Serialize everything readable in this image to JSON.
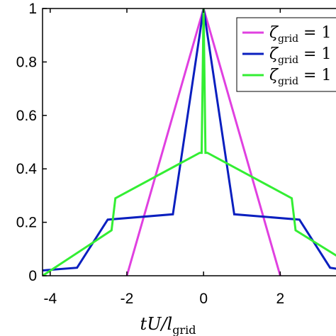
{
  "chart_data": {
    "type": "line",
    "xlabel": {
      "main": "tU/l",
      "sub": "grid"
    },
    "ylabel": "",
    "xlim": [
      -4.2,
      3.75
    ],
    "ylim": [
      0,
      1
    ],
    "xticks": [
      -4,
      -2,
      0,
      2
    ],
    "xtick_labels": [
      "-4",
      "-2",
      "0",
      "2"
    ],
    "yticks": [
      0,
      0.2,
      0.4,
      0.6,
      0.8,
      1
    ],
    "ytick_labels": [
      "0",
      "0.2",
      "0.4",
      "0.6",
      "0.8",
      "1"
    ],
    "grid": false,
    "legend_position": "top-right",
    "series": [
      {
        "name": "ζgrid = 1",
        "name_parts": {
          "symbol": "ζ",
          "sub": "grid",
          "rest": " = 1"
        },
        "color": "#e040e0",
        "x": [
          -2,
          0,
          2
        ],
        "y": [
          0,
          1,
          0
        ]
      },
      {
        "name": "ζgrid = 1",
        "name_parts": {
          "symbol": "ζ",
          "sub": "grid",
          "rest": " = 1"
        },
        "color": "#0a1fbf",
        "x": [
          -4.2,
          -3.3,
          -2.5,
          -0.8,
          0,
          0.8,
          2.5,
          3.3,
          3.75
        ],
        "y": [
          0.02,
          0.03,
          0.21,
          0.23,
          1,
          0.23,
          0.21,
          0.03,
          0.02
        ]
      },
      {
        "name": "ζgrid = 1",
        "name_parts": {
          "symbol": "ζ",
          "sub": "grid",
          "rest": " = 1"
        },
        "color": "#33ee33",
        "x": [
          -4.2,
          -2.4,
          -2.3,
          -0.1,
          -0.05,
          0,
          0.05,
          0.1,
          2.3,
          2.4,
          3.75
        ],
        "y": [
          0.0,
          0.17,
          0.29,
          0.46,
          0.46,
          1,
          0.46,
          0.46,
          0.29,
          0.17,
          0.05
        ]
      }
    ]
  }
}
